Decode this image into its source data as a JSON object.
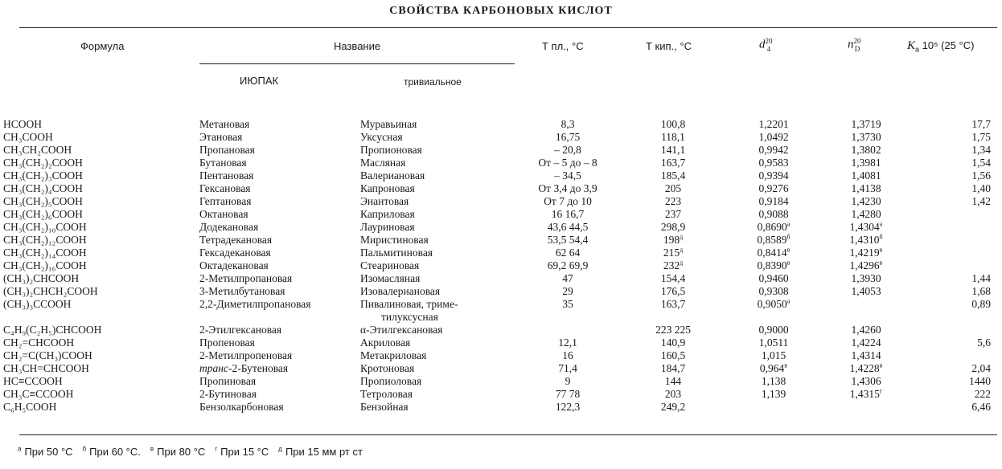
{
  "title": "СВОЙСТВА КАРБОНОВЫХ КИСЛОТ",
  "headers": {
    "formula": "Формула",
    "name": "Название",
    "iupac": "ИЮПАК",
    "trivial": "тривиальное",
    "mp": "Т пл., °С",
    "bp": "Т кип., °С",
    "density": "d",
    "density_sup": "20",
    "density_sub": "4",
    "refr": "n",
    "refr_sup": "20",
    "refr_sub": "D",
    "ka": "K",
    "ka_sub": "a",
    "ka_rest": "10⁵ (25 °С)"
  },
  "rows": [
    {
      "formula": "HCOOH",
      "iupac": "Метановая",
      "trivial": [
        "Муравьиная"
      ],
      "mp": "8,3",
      "bp": "100,8",
      "d": "1,2201",
      "n": "1,3719",
      "ka": "17,7"
    },
    {
      "formula": "CH₃COOH",
      "iupac": "Этановая",
      "trivial": [
        "Уксусная"
      ],
      "mp": "16,75",
      "bp": "118,1",
      "d": "1,0492",
      "n": "1,3730",
      "ka": "1,75"
    },
    {
      "formula": "CH₃CH₂COOH",
      "iupac": "Пропановая",
      "trivial": [
        "Пропионовая"
      ],
      "mp": "– 20,8",
      "bp": "141,1",
      "d": "0,9942",
      "n": "1,3802",
      "ka": "1,34"
    },
    {
      "formula": "CH₃(CH₂)₂COOH",
      "iupac": "Бутановая",
      "trivial": [
        "Масляная"
      ],
      "mp": "От – 5 до – 8",
      "bp": "163,7",
      "d": "0,9583",
      "n": "1,3981",
      "ka": "1,54"
    },
    {
      "formula": "CH₃(CH₂)₃COOH",
      "iupac": "Пентановая",
      "trivial": [
        "Валериановая"
      ],
      "mp": "– 34,5",
      "bp": "185,4",
      "d": "0,9394",
      "n": "1,4081",
      "ka": "1,56"
    },
    {
      "formula": "CH₃(CH₂)₄COOH",
      "iupac": "Гексановая",
      "trivial": [
        "Капроновая"
      ],
      "mp": "От 3,4 до 3,9",
      "bp": "205",
      "d": "0,9276",
      "n": "1,4138",
      "ka": "1,40"
    },
    {
      "formula": "CH₃(CH₂)₅COOH",
      "iupac": "Гептановая",
      "trivial": [
        "Энантовая"
      ],
      "mp": "От 7 до 10",
      "bp": "223",
      "d": "0,9184",
      "n": "1,4230",
      "ka": "1,42"
    },
    {
      "formula": "CH₃(CH₂)₆COOH",
      "iupac": "Октановая",
      "trivial": [
        "Каприловая"
      ],
      "mp": "16 16,7",
      "bp": "237",
      "d": "0,9088",
      "n": "1,4280",
      "ka": ""
    },
    {
      "formula": "CH₃(CH₂)₁₀COOH",
      "iupac": "Додекановая",
      "trivial": [
        "Лауриновая"
      ],
      "mp": "43,6 44,5",
      "bp": "298,9",
      "d": "0,8690",
      "d_note": "а",
      "n": "1,4304",
      "n_note": "а",
      "ka": ""
    },
    {
      "formula": "CH₃(CH₂)₁₂COOH",
      "iupac": "Тетрадекановая",
      "trivial": [
        "Миристиновая"
      ],
      "mp": "53,5 54,4",
      "bp": "198",
      "bp_note": "д",
      "d": "0,8589",
      "d_note": "б",
      "n": "1,4310",
      "n_note": "б",
      "ka": ""
    },
    {
      "formula": "CH₃(CH₂)₁₄COOH",
      "iupac": "Гексадекановая",
      "trivial": [
        "Пальмитиновая"
      ],
      "mp": "62 64",
      "bp": "215",
      "bp_note": "д",
      "d": "0,8414",
      "d_note": "в",
      "n": "1,4219",
      "n_note": "в",
      "ka": ""
    },
    {
      "formula": "CH₃(CH₂)₁₆COOH",
      "iupac": "Октадекановая",
      "trivial": [
        "Стеариновая"
      ],
      "mp": "69,2 69,9",
      "bp": "232",
      "bp_note": "д",
      "d": "0,8390",
      "d_note": "в",
      "n": "1,4296",
      "n_note": "в",
      "ka": ""
    },
    {
      "formula": "(CH₃)₂CHCOOH",
      "iupac": "2-Метилпропановая",
      "trivial": [
        "Изомасляная"
      ],
      "mp": "47",
      "bp": "154,4",
      "d": "0,9460",
      "n": "1,3930",
      "ka": "1,44"
    },
    {
      "formula": "(CH₃)₂CHCH₂COOH",
      "iupac": "3-Метилбутановая",
      "trivial": [
        "Изовалериановая"
      ],
      "mp": "29",
      "bp": "176,5",
      "d": "0,9308",
      "n": "1,4053",
      "ka": "1,68"
    },
    {
      "formula": "(CH₃)₃CCOOH",
      "iupac": "2,2-Диметилпропановая",
      "trivial": [
        "Пивалиновая, триме-",
        "тилуксусная"
      ],
      "mp": "35",
      "bp": "163,7",
      "d": "0,9050",
      "d_note": "а",
      "n": "",
      "ka": "0,89"
    },
    {
      "formula": "C₄H₉(C₂H₅)CHCOOH",
      "iupac": "2-Этилгексановая",
      "trivial": [
        "α-Этилгексановая"
      ],
      "mp": "",
      "bp": "223 225",
      "d": "0,9000",
      "n": "1,4260",
      "ka": ""
    },
    {
      "formula": "CH₂=CHCOOH",
      "iupac": "Пропеновая",
      "trivial": [
        "Акриловая"
      ],
      "mp": "12,1",
      "bp": "140,9",
      "d": "1,0511",
      "n": "1,4224",
      "ka": "5,6"
    },
    {
      "formula": "CH₂=C(CH₃)COOH",
      "iupac": "2-Метилпропеновая",
      "trivial": [
        "Метакриловая"
      ],
      "mp": "16",
      "bp": "160,5",
      "d": "1,015",
      "n": "1,4314",
      "ka": ""
    },
    {
      "formula": "CH₃CH=CHCOOH",
      "iupac_italic": "транс",
      "iupac": "-2-Бутеновая",
      "trivial": [
        "Кротоновая"
      ],
      "mp": "71,4",
      "bp": "184,7",
      "d": "0,964",
      "d_note": "в",
      "n": "1,4228",
      "n_note": "в",
      "ka": "2,04"
    },
    {
      "formula": "HC≡CCOOH",
      "iupac": "Пропиновая",
      "trivial": [
        "Пропиоловая"
      ],
      "mp": "9",
      "bp": "144",
      "d": "1,138",
      "n": "1,4306",
      "ka": "1440"
    },
    {
      "formula": "CH₃C≡CCOOH",
      "iupac": "2-Бутиновая",
      "trivial": [
        "Тетроловая"
      ],
      "mp": "77 78",
      "bp": "203",
      "d": "1,139",
      "n": "1,4315",
      "n_note": "г",
      "ka": "222"
    },
    {
      "formula": "C₆H₅COOH",
      "iupac": "Бензолкарбоновая",
      "trivial": [
        "Бензойная"
      ],
      "mp": "122,3",
      "bp": "249,2",
      "d": "",
      "n": "",
      "ka": "6,46"
    }
  ],
  "footnotes": [
    {
      "mark": "а",
      "text": "При 50 °С"
    },
    {
      "mark": "б",
      "text": "При 60 °С."
    },
    {
      "mark": "в",
      "text": "При 80 °С"
    },
    {
      "mark": "г",
      "text": "При 15 °С"
    },
    {
      "mark": "д",
      "text": "При 15 мм рт ст"
    }
  ]
}
